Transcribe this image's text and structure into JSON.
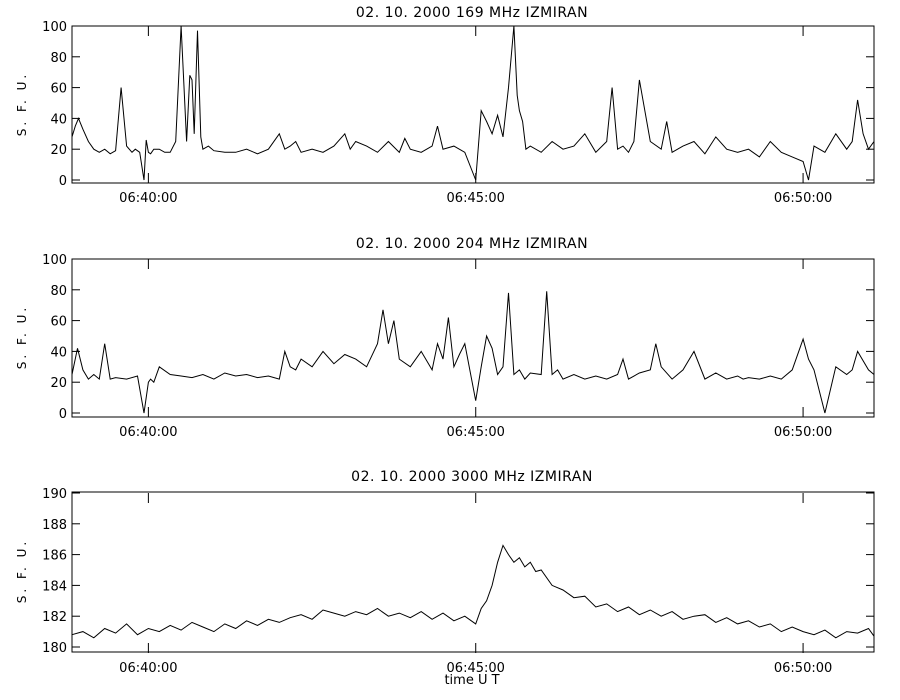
{
  "chart_data": [
    {
      "type": "line",
      "title": "02.  10.  2000    169  MHz    IZMIRAN",
      "ylabel": "S. F. U.",
      "xlabel": "",
      "xlim": [
        "06:38:50",
        "06:51:05"
      ],
      "ylim": [
        0,
        100
      ],
      "yticks": [
        0,
        20,
        40,
        60,
        80,
        100
      ],
      "xticks": [
        "06:40:00",
        "06:45:00",
        "06:50:00"
      ],
      "grid": false,
      "series": [
        {
          "x": [
            "06:38:50",
            "06:38:53",
            "06:38:56",
            "06:39:00",
            "06:39:05",
            "06:39:10",
            "06:39:15",
            "06:39:20",
            "06:39:25",
            "06:39:30",
            "06:39:35",
            "06:39:40",
            "06:39:45",
            "06:39:48",
            "06:39:52",
            "06:39:56",
            "06:39:58",
            "06:40:00",
            "06:40:02",
            "06:40:05",
            "06:40:10",
            "06:40:15",
            "06:40:20",
            "06:40:25",
            "06:40:30",
            "06:40:35",
            "06:40:38",
            "06:40:40",
            "06:40:42",
            "06:40:45",
            "06:40:48",
            "06:40:50",
            "06:40:55",
            "06:41:00",
            "06:41:10",
            "06:41:20",
            "06:41:30",
            "06:41:40",
            "06:41:50",
            "06:42:00",
            "06:42:05",
            "06:42:10",
            "06:42:15",
            "06:42:20",
            "06:42:30",
            "06:42:40",
            "06:42:50",
            "06:43:00",
            "06:43:05",
            "06:43:10",
            "06:43:20",
            "06:43:30",
            "06:43:40",
            "06:43:50",
            "06:43:55",
            "06:44:00",
            "06:44:10",
            "06:44:20",
            "06:44:25",
            "06:44:30",
            "06:44:40",
            "06:44:50",
            "06:45:00",
            "06:45:05",
            "06:45:10",
            "06:45:15",
            "06:45:20",
            "06:45:25",
            "06:45:30",
            "06:45:35",
            "06:45:38",
            "06:45:40",
            "06:45:43",
            "06:45:46",
            "06:45:50",
            "06:46:00",
            "06:46:10",
            "06:46:20",
            "06:46:30",
            "06:46:40",
            "06:46:50",
            "06:47:00",
            "06:47:05",
            "06:47:10",
            "06:47:15",
            "06:47:20",
            "06:47:25",
            "06:47:30",
            "06:47:40",
            "06:47:50",
            "06:47:55",
            "06:48:00",
            "06:48:10",
            "06:48:20",
            "06:48:30",
            "06:48:40",
            "06:48:50",
            "06:49:00",
            "06:49:10",
            "06:49:20",
            "06:49:30",
            "06:49:40",
            "06:49:50",
            "06:50:00",
            "06:50:05",
            "06:50:10",
            "06:50:20",
            "06:50:30",
            "06:50:40",
            "06:50:45",
            "06:50:50",
            "06:50:55",
            "06:51:00",
            "06:51:05"
          ],
          "y": [
            28,
            35,
            40,
            33,
            25,
            20,
            18,
            20,
            17,
            19,
            60,
            22,
            18,
            20,
            18,
            0,
            26,
            18,
            17,
            20,
            20,
            18,
            18,
            25,
            100,
            25,
            68,
            65,
            30,
            97,
            28,
            20,
            22,
            19,
            18,
            18,
            20,
            17,
            20,
            30,
            20,
            22,
            25,
            18,
            20,
            18,
            22,
            30,
            20,
            25,
            22,
            18,
            25,
            18,
            27,
            20,
            18,
            22,
            35,
            20,
            22,
            18,
            0,
            45,
            38,
            30,
            42,
            28,
            60,
            100,
            55,
            45,
            38,
            20,
            22,
            18,
            25,
            20,
            22,
            30,
            18,
            25,
            60,
            20,
            22,
            18,
            25,
            65,
            25,
            20,
            38,
            18,
            22,
            25,
            17,
            28,
            20,
            18,
            20,
            15,
            25,
            18,
            15,
            12,
            0,
            22,
            18,
            30,
            20,
            25,
            52,
            30,
            20,
            25
          ]
        }
      ]
    },
    {
      "type": "line",
      "title": "02.  10.  2000    204  MHz    IZMIRAN",
      "ylabel": "S. F. U.",
      "xlabel": "",
      "xlim": [
        "06:38:50",
        "06:51:05"
      ],
      "ylim": [
        0,
        100
      ],
      "yticks": [
        0,
        20,
        40,
        60,
        80,
        100
      ],
      "xticks": [
        "06:40:00",
        "06:45:00",
        "06:50:00"
      ],
      "grid": false,
      "series": [
        {
          "x": [
            "06:38:50",
            "06:38:55",
            "06:39:00",
            "06:39:05",
            "06:39:10",
            "06:39:15",
            "06:39:20",
            "06:39:25",
            "06:39:30",
            "06:39:40",
            "06:39:50",
            "06:39:56",
            "06:40:00",
            "06:40:02",
            "06:40:05",
            "06:40:10",
            "06:40:20",
            "06:40:30",
            "06:40:40",
            "06:40:50",
            "06:41:00",
            "06:41:10",
            "06:41:20",
            "06:41:30",
            "06:41:40",
            "06:41:50",
            "06:42:00",
            "06:42:05",
            "06:42:10",
            "06:42:15",
            "06:42:20",
            "06:42:30",
            "06:42:40",
            "06:42:50",
            "06:43:00",
            "06:43:10",
            "06:43:20",
            "06:43:30",
            "06:43:35",
            "06:43:40",
            "06:43:45",
            "06:43:50",
            "06:44:00",
            "06:44:10",
            "06:44:20",
            "06:44:25",
            "06:44:30",
            "06:44:35",
            "06:44:40",
            "06:44:45",
            "06:44:50",
            "06:45:00",
            "06:45:05",
            "06:45:10",
            "06:45:15",
            "06:45:20",
            "06:45:25",
            "06:45:30",
            "06:45:35",
            "06:45:40",
            "06:45:45",
            "06:45:50",
            "06:46:00",
            "06:46:05",
            "06:46:10",
            "06:46:15",
            "06:46:20",
            "06:46:30",
            "06:46:40",
            "06:46:50",
            "06:47:00",
            "06:47:10",
            "06:47:15",
            "06:47:20",
            "06:47:30",
            "06:47:40",
            "06:47:45",
            "06:47:50",
            "06:48:00",
            "06:48:10",
            "06:48:20",
            "06:48:30",
            "06:48:40",
            "06:48:50",
            "06:49:00",
            "06:49:05",
            "06:49:10",
            "06:49:20",
            "06:49:30",
            "06:49:40",
            "06:49:50",
            "06:50:00",
            "06:50:05",
            "06:50:10",
            "06:50:20",
            "06:50:30",
            "06:50:40",
            "06:50:45",
            "06:50:50",
            "06:51:00",
            "06:51:05"
          ],
          "y": [
            25,
            42,
            28,
            22,
            25,
            22,
            45,
            22,
            23,
            22,
            24,
            0,
            20,
            22,
            20,
            30,
            25,
            24,
            23,
            25,
            22,
            26,
            24,
            25,
            23,
            24,
            22,
            40,
            30,
            28,
            35,
            30,
            40,
            32,
            38,
            35,
            30,
            45,
            67,
            45,
            60,
            35,
            30,
            40,
            28,
            45,
            35,
            62,
            30,
            38,
            45,
            8,
            30,
            50,
            42,
            25,
            30,
            78,
            25,
            28,
            22,
            26,
            25,
            79,
            25,
            28,
            22,
            25,
            22,
            24,
            22,
            25,
            35,
            22,
            26,
            28,
            45,
            30,
            22,
            28,
            40,
            22,
            26,
            22,
            24,
            22,
            23,
            22,
            24,
            22,
            28,
            48,
            35,
            28,
            0,
            30,
            25,
            28,
            40,
            28,
            25
          ]
        }
      ]
    },
    {
      "type": "line",
      "title": "02.  10.  2000    3000  MHz    IZMIRAN",
      "ylabel": "S. F. U.",
      "xlabel": "time   U T",
      "xlim": [
        "06:38:50",
        "06:51:05"
      ],
      "ylim": [
        180,
        190
      ],
      "yticks": [
        180,
        182,
        184,
        186,
        188,
        190
      ],
      "xticks": [
        "06:40:00",
        "06:45:00",
        "06:50:00"
      ],
      "grid": false,
      "series": [
        {
          "x": [
            "06:38:50",
            "06:39:00",
            "06:39:10",
            "06:39:20",
            "06:39:30",
            "06:39:40",
            "06:39:50",
            "06:40:00",
            "06:40:10",
            "06:40:20",
            "06:40:30",
            "06:40:40",
            "06:40:50",
            "06:41:00",
            "06:41:10",
            "06:41:20",
            "06:41:30",
            "06:41:40",
            "06:41:50",
            "06:42:00",
            "06:42:10",
            "06:42:20",
            "06:42:30",
            "06:42:40",
            "06:42:50",
            "06:43:00",
            "06:43:10",
            "06:43:20",
            "06:43:30",
            "06:43:40",
            "06:43:50",
            "06:44:00",
            "06:44:10",
            "06:44:20",
            "06:44:30",
            "06:44:40",
            "06:44:50",
            "06:45:00",
            "06:45:05",
            "06:45:10",
            "06:45:15",
            "06:45:20",
            "06:45:25",
            "06:45:30",
            "06:45:35",
            "06:45:40",
            "06:45:45",
            "06:45:50",
            "06:45:55",
            "06:46:00",
            "06:46:10",
            "06:46:20",
            "06:46:30",
            "06:46:40",
            "06:46:50",
            "06:47:00",
            "06:47:10",
            "06:47:20",
            "06:47:30",
            "06:47:40",
            "06:47:50",
            "06:48:00",
            "06:48:10",
            "06:48:20",
            "06:48:30",
            "06:48:40",
            "06:48:50",
            "06:49:00",
            "06:49:10",
            "06:49:20",
            "06:49:30",
            "06:49:40",
            "06:49:50",
            "06:50:00",
            "06:50:10",
            "06:50:20",
            "06:50:30",
            "06:50:40",
            "06:50:50",
            "06:51:00",
            "06:51:05"
          ],
          "y": [
            180.8,
            181.0,
            180.6,
            181.2,
            180.9,
            181.5,
            180.8,
            181.2,
            181.0,
            181.4,
            181.1,
            181.6,
            181.3,
            181.0,
            181.5,
            181.2,
            181.7,
            181.4,
            181.8,
            181.6,
            181.9,
            182.1,
            181.8,
            182.4,
            182.2,
            182.0,
            182.3,
            182.1,
            182.5,
            182.0,
            182.2,
            181.9,
            182.3,
            181.8,
            182.2,
            181.7,
            182.0,
            181.5,
            182.5,
            183.0,
            184.0,
            185.5,
            186.6,
            186.0,
            185.5,
            185.8,
            185.2,
            185.5,
            184.9,
            185.0,
            184.0,
            183.7,
            183.2,
            183.3,
            182.6,
            182.8,
            182.3,
            182.6,
            182.1,
            182.4,
            182.0,
            182.3,
            181.8,
            182.0,
            182.1,
            181.6,
            181.9,
            181.5,
            181.7,
            181.3,
            181.5,
            181.0,
            181.3,
            181.0,
            180.8,
            181.1,
            180.6,
            181.0,
            180.9,
            181.2,
            180.7
          ]
        }
      ]
    }
  ]
}
